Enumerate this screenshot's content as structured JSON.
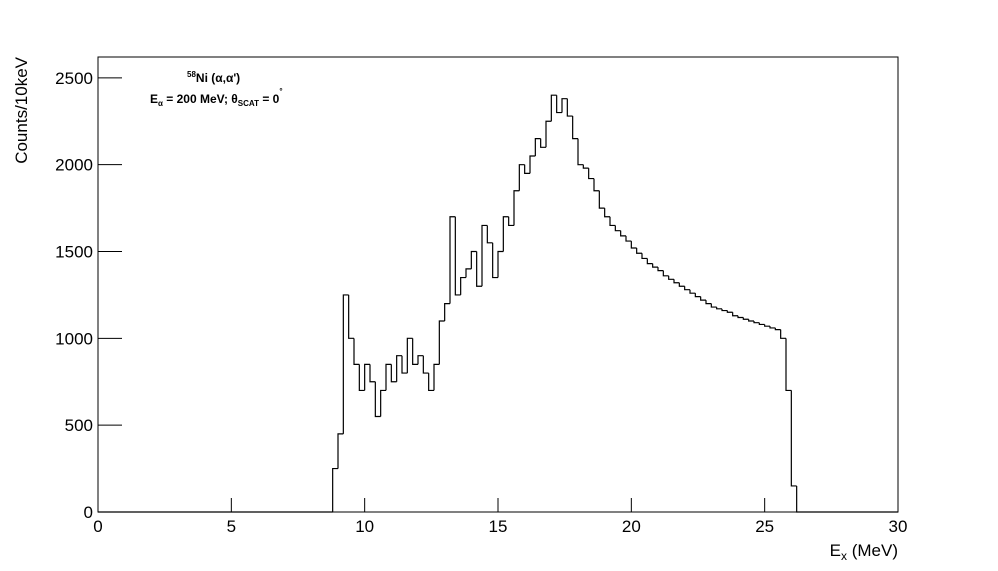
{
  "chart_data": {
    "type": "histogram",
    "annotation_1": {
      "sup": "58",
      "main": "Ni (α,α')"
    },
    "annotation_2": {
      "parts": [
        "E",
        "α",
        " = 200 MeV;  θ",
        "SCAT",
        " = 0",
        "°"
      ]
    },
    "x_label": {
      "parts": [
        "E",
        "x",
        " (MeV)"
      ]
    },
    "y_label": "Counts/10keV",
    "color": "#000000",
    "xlim": [
      0,
      30
    ],
    "xticks": [
      0,
      5,
      10,
      15,
      20,
      25,
      30
    ],
    "ylim": [
      0,
      2620
    ],
    "yticks": [
      0,
      500,
      1000,
      1500,
      2000,
      2500
    ],
    "bins": [
      0,
      8.8,
      9.0,
      9.2,
      9.4,
      9.6,
      9.8,
      10.0,
      10.2,
      10.4,
      10.6,
      10.8,
      11.0,
      11.2,
      11.4,
      11.6,
      11.8,
      12.0,
      12.2,
      12.4,
      12.6,
      12.8,
      13.0,
      13.2,
      13.4,
      13.6,
      13.8,
      14.0,
      14.2,
      14.4,
      14.6,
      14.8,
      15.0,
      15.2,
      15.4,
      15.6,
      15.8,
      16.0,
      16.2,
      16.4,
      16.6,
      16.8,
      17.0,
      17.2,
      17.4,
      17.6,
      17.8,
      18.0,
      18.2,
      18.4,
      18.6,
      18.8,
      19.0,
      19.2,
      19.4,
      19.6,
      19.8,
      20.0,
      20.2,
      20.4,
      20.6,
      20.8,
      21.0,
      21.2,
      21.4,
      21.6,
      21.8,
      22.0,
      22.2,
      22.4,
      22.6,
      22.8,
      23.0,
      23.2,
      23.4,
      23.6,
      23.8,
      24.0,
      24.2,
      24.4,
      24.6,
      24.8,
      25.0,
      25.2,
      25.4,
      25.6,
      25.8,
      26.0,
      26.2,
      30
    ],
    "counts": [
      0,
      250,
      450,
      1250,
      1000,
      850,
      700,
      850,
      750,
      550,
      700,
      850,
      750,
      900,
      800,
      1000,
      850,
      900,
      800,
      700,
      850,
      1100,
      1200,
      1700,
      1250,
      1350,
      1400,
      1500,
      1300,
      1650,
      1550,
      1350,
      1500,
      1700,
      1650,
      1850,
      2000,
      1950,
      2050,
      2150,
      2100,
      2250,
      2400,
      2300,
      2380,
      2280,
      2150,
      2000,
      1980,
      1920,
      1850,
      1750,
      1700,
      1650,
      1620,
      1590,
      1560,
      1520,
      1490,
      1460,
      1430,
      1410,
      1390,
      1360,
      1340,
      1320,
      1300,
      1280,
      1260,
      1240,
      1220,
      1200,
      1180,
      1170,
      1160,
      1150,
      1130,
      1120,
      1110,
      1100,
      1090,
      1080,
      1070,
      1060,
      1050,
      1000,
      700,
      150,
      0
    ]
  }
}
